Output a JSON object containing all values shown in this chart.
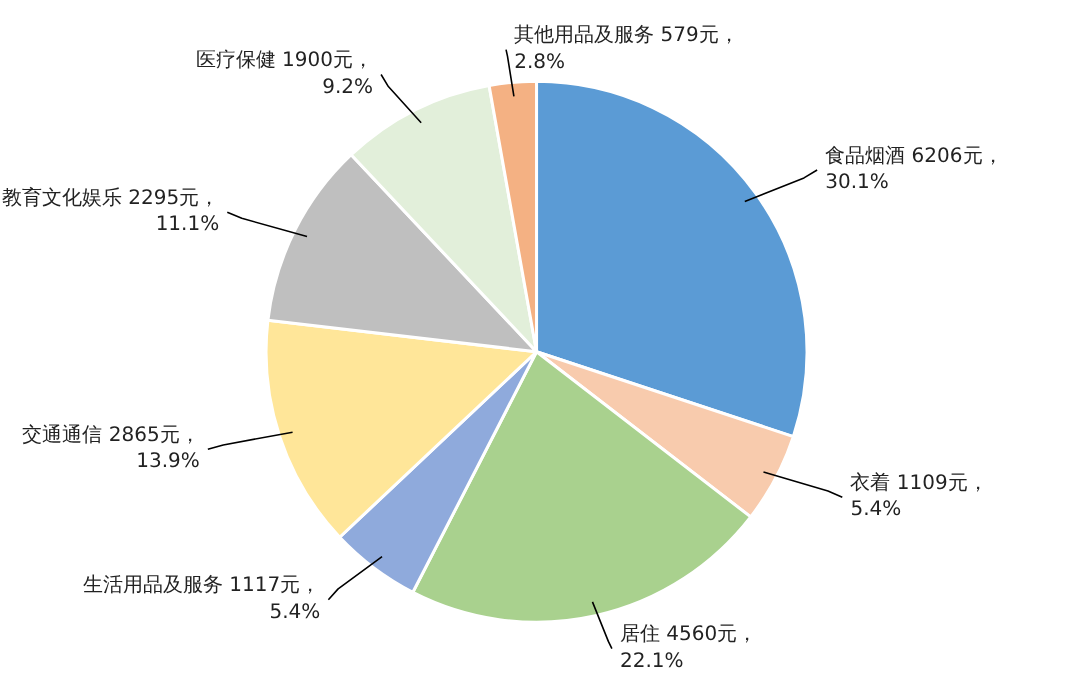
{
  "chart_data": {
    "type": "pie",
    "categories": [
      "食品烟酒",
      "衣着",
      "居住",
      "生活用品及服务",
      "交通通信",
      "教育文化娱乐",
      "医疗保健",
      "其他用品及服务"
    ],
    "values": [
      6206,
      1109,
      4560,
      1117,
      2865,
      2295,
      1900,
      579
    ],
    "colors": [
      "#5b9bd5",
      "#f8cbad",
      "#a9d18e",
      "#8faadc",
      "#ffe699",
      "#bfbfbf",
      "#e2efda",
      "#f4b183"
    ],
    "value_labels": [
      "6206元，\n30.1%",
      "1109元，\n5.4%",
      "4560元，\n22.1%",
      "1117元，\n5.4%",
      "2865元，\n13.9%",
      "2295元，\n11.1%",
      "1900元，\n9.2%",
      "579元，\n2.8%"
    ]
  }
}
